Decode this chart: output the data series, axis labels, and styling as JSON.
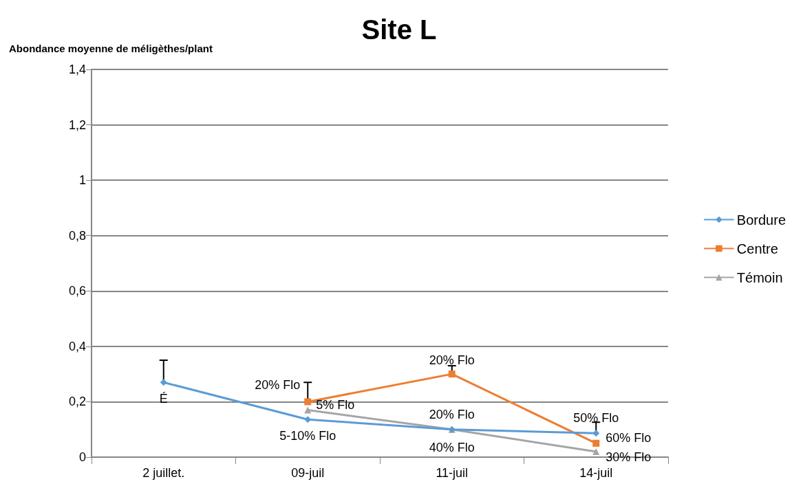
{
  "chart_data": {
    "type": "line",
    "title": "Site L",
    "ylabel": "Abondance moyenne de méligèthes/plant",
    "categories": [
      "2 juillet.",
      "09-juil",
      "11-juil",
      "14-juil"
    ],
    "series": [
      {
        "name": "Bordure",
        "color": "#5b9bd5",
        "marker": "diamond",
        "values": [
          0.27,
          0.136,
          0.1,
          0.086
        ],
        "errors": [
          [
            0.27,
            0.35
          ],
          null,
          null,
          [
            0.086,
            0.126
          ]
        ]
      },
      {
        "name": "Centre",
        "color": "#ed7d31",
        "marker": "square",
        "values": [
          null,
          0.2,
          0.3,
          0.05
        ],
        "errors": [
          null,
          [
            0.2,
            0.27
          ],
          [
            0.3,
            0.33
          ],
          null
        ]
      },
      {
        "name": "Témoin",
        "color": "#a5a5a5",
        "marker": "triangle",
        "values": [
          null,
          0.17,
          0.1,
          0.02
        ]
      }
    ],
    "annotations": [
      {
        "text": "É",
        "x": "2 juillet.",
        "y": 0.27
      },
      {
        "text": "5-10% Flo",
        "x": "09-juil",
        "y": 0.136
      },
      {
        "text": "40% Flo",
        "x": "11-juil",
        "y": 0.1
      },
      {
        "text": "50% Flo",
        "x": "14-juil",
        "y": 0.086
      },
      {
        "text": "20% Flo",
        "x": "09-juil",
        "y": 0.2
      },
      {
        "text": "20% Flo",
        "x": "11-juil",
        "y": 0.3
      },
      {
        "text": "60% Flo",
        "x": "14-juil",
        "y": 0.05
      },
      {
        "text": "5% Flo",
        "x": "09-juil",
        "y": 0.17
      },
      {
        "text": "20% Flo",
        "x": "11-juil",
        "y": 0.1
      },
      {
        "text": "30% Flo",
        "x": "14-juil",
        "y": 0.02
      }
    ],
    "ylim": [
      0,
      1.4
    ],
    "yticks": [
      0,
      {
        "value": 0.2,
        "label": "0,2"
      },
      {
        "value": 0.4,
        "label": "0,4"
      },
      {
        "value": 0.6,
        "label": "0,6"
      },
      {
        "value": 0.8,
        "label": "0,8"
      },
      {
        "value": 1,
        "label": "1"
      },
      {
        "value": 1.2,
        "label": "1,2"
      },
      {
        "value": 1.4,
        "label": "1,4"
      }
    ],
    "grid": "y",
    "legend": "right",
    "line_style": "solid"
  }
}
